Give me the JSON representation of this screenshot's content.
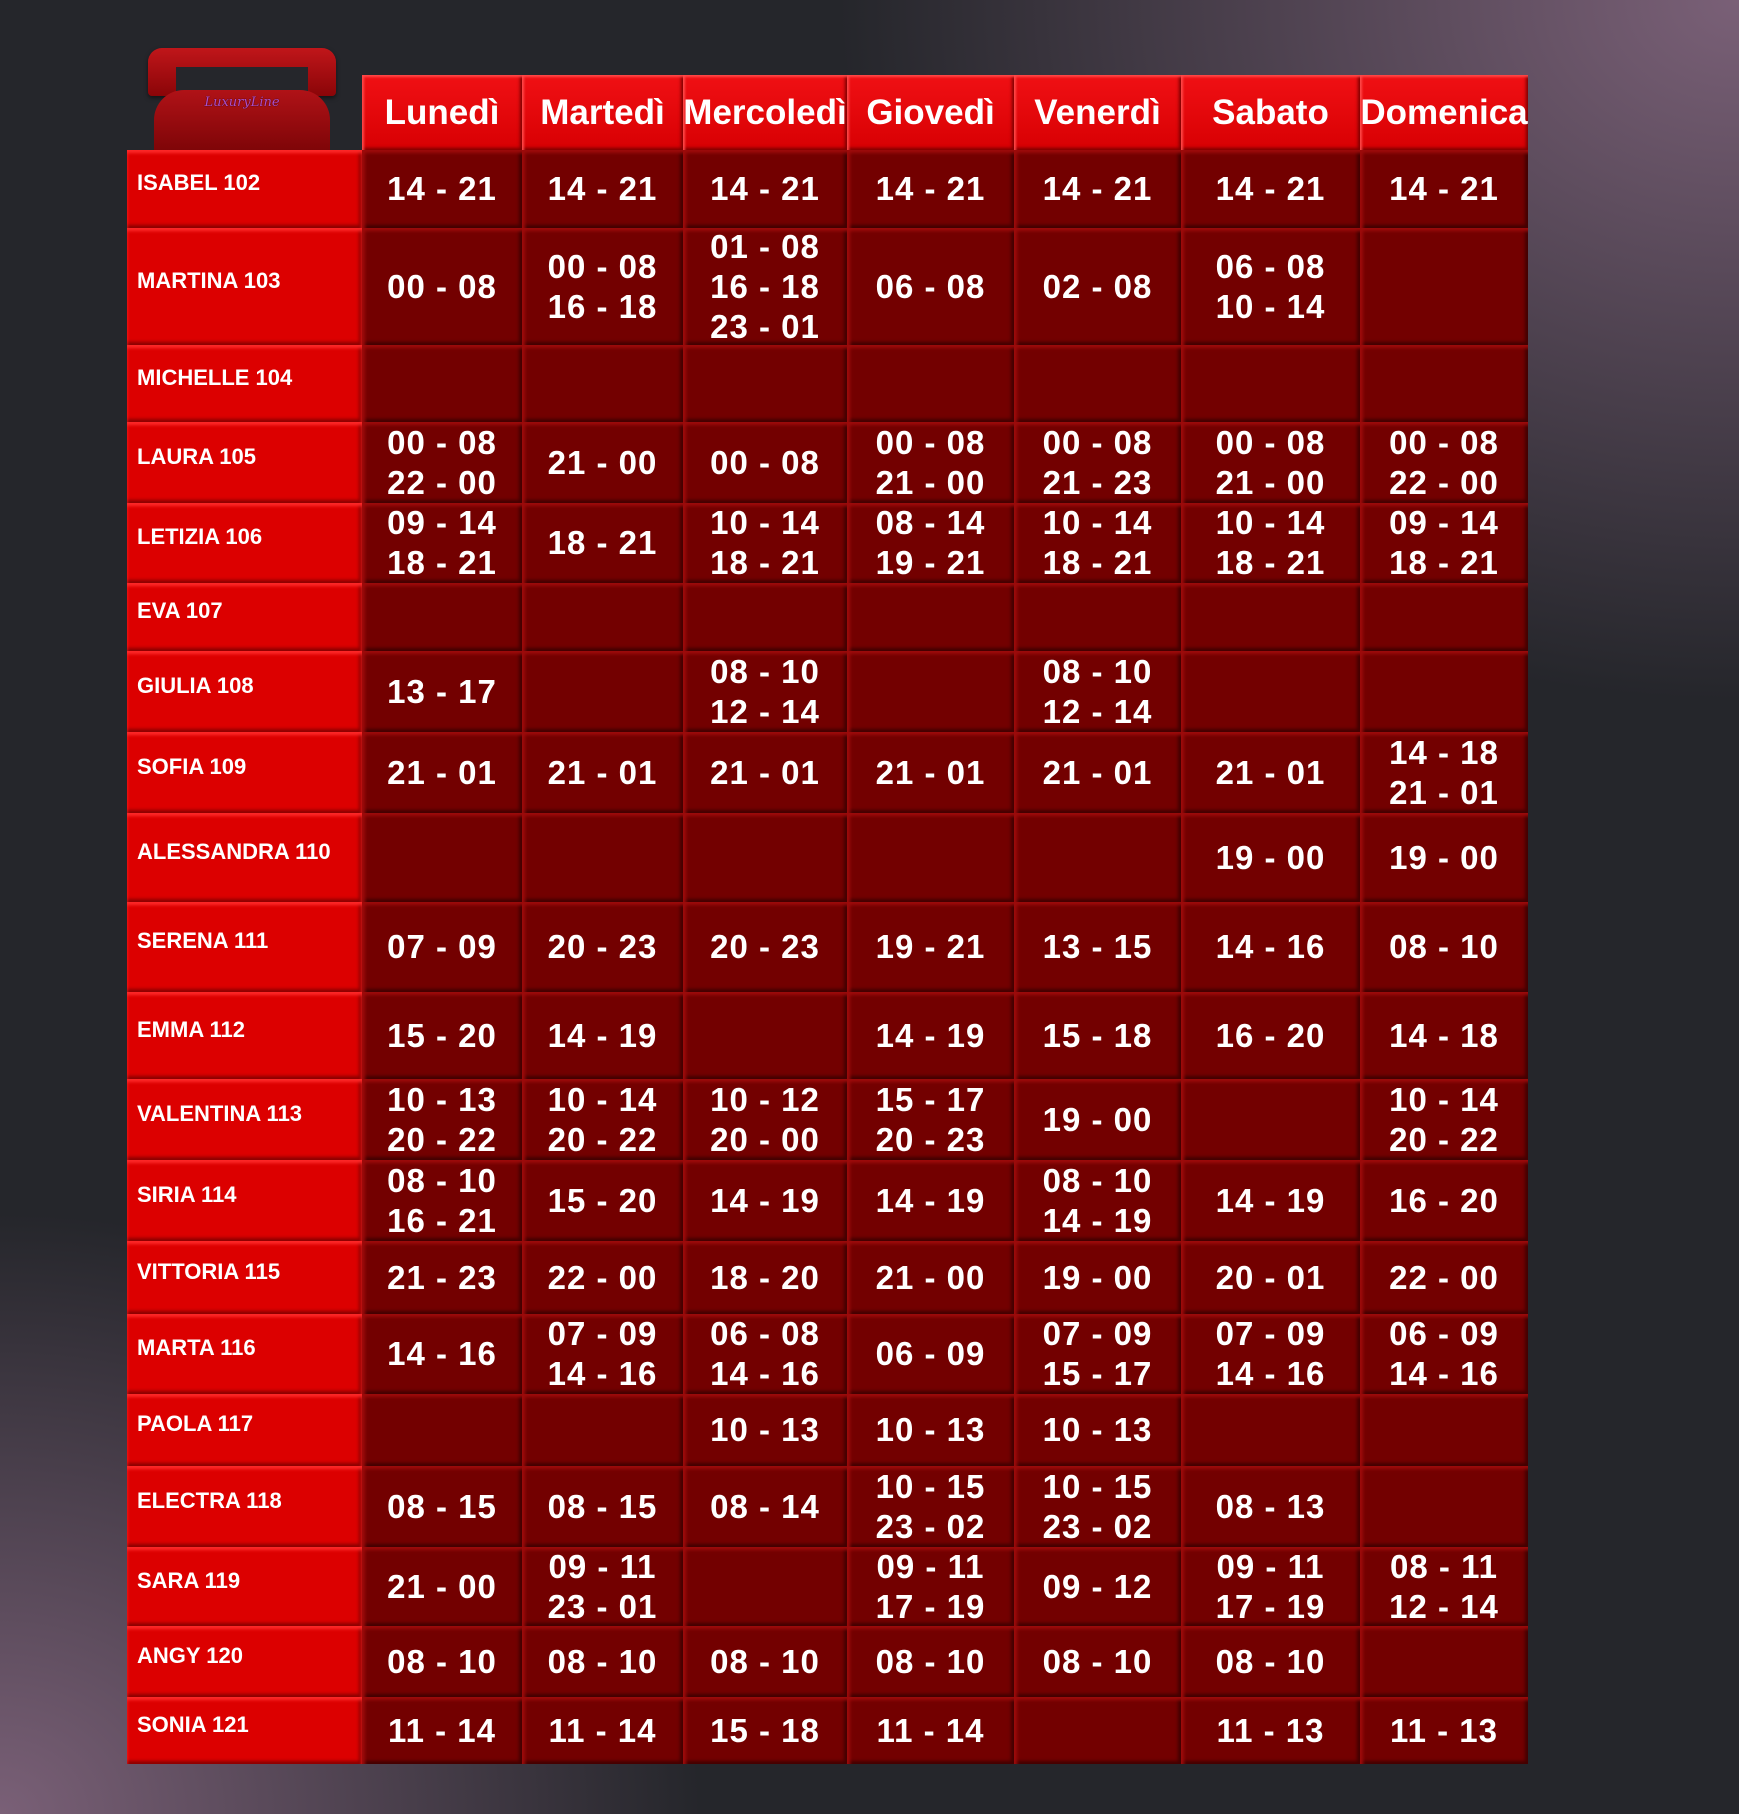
{
  "logo": {
    "brand": "LuxuryLine",
    "icon": "telephone-icon"
  },
  "colors": {
    "header": "#dc0000",
    "name_column": "#dc0000",
    "cell": "#730000",
    "text": "#ffffff"
  },
  "days": [
    "Lunedì",
    "Martedì",
    "Mercoledì",
    "Giovedì",
    "Venerdì",
    "Sabato",
    "Domenica"
  ],
  "rows": [
    {
      "name": "ISABEL 102",
      "cells": [
        "14 - 21",
        "14 - 21",
        "14 - 21",
        "14 - 21",
        "14 - 21",
        "14 - 21",
        "14 - 21"
      ]
    },
    {
      "name": "MARTINA 103",
      "cells": [
        "00 - 08",
        "00 - 08\n16 - 18",
        "01 - 08\n16 - 18\n23 - 01",
        "06 - 08",
        "02 - 08",
        "06 - 08\n10 - 14",
        ""
      ]
    },
    {
      "name": "MICHELLE 104",
      "cells": [
        "",
        "",
        "",
        "",
        "",
        "",
        ""
      ]
    },
    {
      "name": "LAURA 105",
      "cells": [
        "00 - 08\n22 - 00",
        "21 - 00",
        "00 - 08",
        "00 - 08\n21 - 00",
        "00 - 08\n21 - 23",
        "00 - 08\n21 - 00",
        "00 - 08\n22 - 00"
      ]
    },
    {
      "name": "LETIZIA 106",
      "cells": [
        "09 - 14\n18 - 21",
        "18 - 21",
        "10 - 14\n18 - 21",
        "08 - 14\n19 - 21",
        "10 - 14\n18 - 21",
        "10 - 14\n18 - 21",
        "09 - 14\n18 - 21"
      ]
    },
    {
      "name": "EVA 107",
      "cells": [
        "",
        "",
        "",
        "",
        "",
        "",
        ""
      ]
    },
    {
      "name": "GIULIA 108",
      "cells": [
        "13 - 17",
        "",
        "08 - 10\n12 - 14",
        "",
        "08 - 10\n12 - 14",
        "",
        ""
      ]
    },
    {
      "name": "SOFIA 109",
      "cells": [
        "21 - 01",
        "21 - 01",
        "21 - 01",
        "21 - 01",
        "21 - 01",
        "21 - 01",
        "14 - 18\n21 - 01"
      ]
    },
    {
      "name": "ALESSANDRA 110",
      "cells": [
        "",
        "",
        "",
        "",
        "",
        "19 - 00",
        "19 - 00"
      ]
    },
    {
      "name": "SERENA 111",
      "cells": [
        "07 - 09",
        "20 - 23",
        "20 - 23",
        "19 - 21",
        "13 - 15",
        "14 - 16",
        "08 - 10"
      ]
    },
    {
      "name": "EMMA 112",
      "cells": [
        "15 - 20",
        "14 - 19",
        "",
        "14 - 19",
        "15 - 18",
        "16 - 20",
        "14 - 18"
      ]
    },
    {
      "name": "VALENTINA 113",
      "cells": [
        "10 - 13\n20 - 22",
        "10 - 14\n20 - 22",
        "10 - 12\n20 - 00",
        "15 - 17\n20 -  23",
        "19 - 00",
        "",
        "10 - 14\n20 - 22"
      ]
    },
    {
      "name": "SIRIA 114",
      "cells": [
        "08 - 10\n16 - 21",
        "15 - 20",
        "14 - 19",
        "14 - 19",
        "08 - 10\n14 - 19",
        "14 - 19",
        "16 - 20"
      ]
    },
    {
      "name": "VITTORIA  115",
      "cells": [
        "21 - 23",
        "22 - 00",
        "18 - 20",
        "21 - 00",
        "19 - 00",
        "20 - 01",
        "22 - 00"
      ]
    },
    {
      "name": "MARTA 116",
      "cells": [
        "14 - 16",
        "07 - 09\n14 - 16",
        "06 - 08\n14 - 16",
        "06 - 09",
        "07 - 09\n15 - 17",
        "07 - 09\n14 - 16",
        "06 - 09\n14 - 16"
      ]
    },
    {
      "name": "PAOLA 117",
      "cells": [
        "",
        "",
        "10 - 13",
        "10 - 13",
        "10 - 13",
        "",
        ""
      ]
    },
    {
      "name": "ELECTRA 118",
      "cells": [
        "08 - 15",
        "08 - 15",
        "08 - 14",
        "10 - 15\n23 - 02",
        "10 - 15\n23 - 02",
        "08 - 13",
        ""
      ]
    },
    {
      "name": "SARA 119",
      "cells": [
        "21 - 00",
        "09 - 11\n23 - 01",
        "",
        "09 - 11\n17 - 19",
        "09 - 12",
        "09 - 11\n17 - 19",
        "08 - 11\n12 - 14"
      ]
    },
    {
      "name": "ANGY 120",
      "cells": [
        "08 - 10",
        "08 - 10",
        "08 - 10",
        "08 - 10",
        "08 - 10",
        "08 - 10",
        ""
      ]
    },
    {
      "name": "SONIA 121",
      "cells": [
        "11 - 14",
        "11 - 14",
        "15 - 18",
        "11 - 14",
        "",
        "11 - 13",
        "11 - 13"
      ]
    }
  ]
}
